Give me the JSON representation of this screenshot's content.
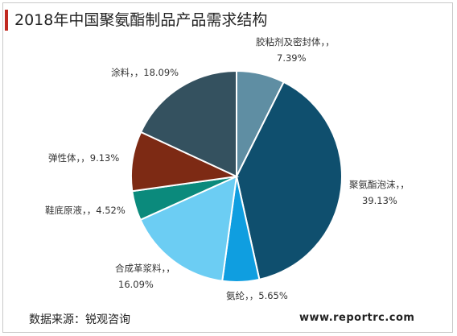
{
  "page": {
    "title": "2018年中国聚氨酯制品产品需求结构",
    "source": "数据来源：锐观咨询",
    "website": "www.reportrc.com"
  },
  "chart_data": {
    "type": "pie",
    "title": "2018年中国聚氨酯制品产品需求结构",
    "slices": [
      {
        "name": "胶粘剂及密封体",
        "value": 7.39,
        "label_line1": "胶粘剂及密封体，，",
        "label_line2": "7.39%",
        "color": "#5f8ea3"
      },
      {
        "name": "聚氨酯泡沫",
        "value": 39.13,
        "label_line1": "聚氨酯泡沫，，",
        "label_line2": "39.13%",
        "color": "#0f4f6e"
      },
      {
        "name": "氨纶",
        "value": 5.65,
        "label_line1": "氨纶，，5.65%",
        "label_line2": "",
        "color": "#0f9ee0"
      },
      {
        "name": "合成革浆料",
        "value": 16.09,
        "label_line1": "合成革浆料，，",
        "label_line2": "16.09%",
        "color": "#6ccdf3"
      },
      {
        "name": "鞋底原液",
        "value": 4.52,
        "label_line1": "鞋底原液，，4.52%",
        "label_line2": "",
        "color": "#0b8a7c"
      },
      {
        "name": "弹性体",
        "value": 9.13,
        "label_line1": "弹性体，，9.13%",
        "label_line2": "",
        "color": "#7d2a14"
      },
      {
        "name": "涂料",
        "value": 18.09,
        "label_line1": "涂料，，18.09%",
        "label_line2": "",
        "color": "#34515f"
      }
    ],
    "start_angle": "top",
    "direction": "clockwise",
    "legend": "none"
  }
}
